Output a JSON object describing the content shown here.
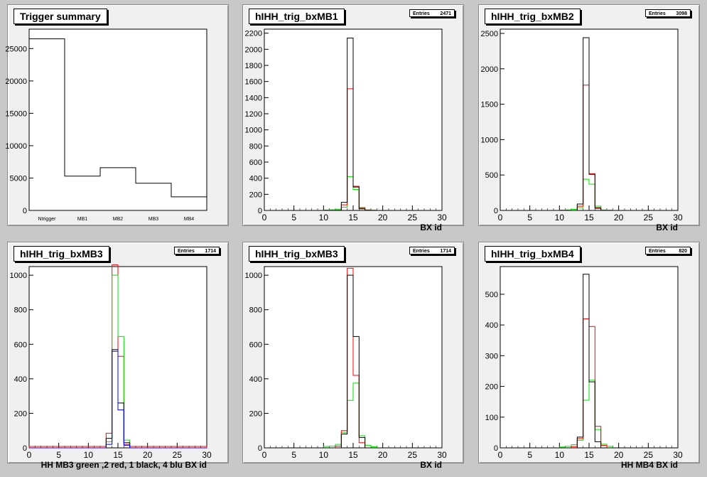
{
  "pads": [
    {
      "title": "Trigger summary",
      "stats": null,
      "xtitle": "",
      "chart_data": {
        "type": "bar",
        "categories": [
          "Ntrigger",
          "MB1",
          "MB2",
          "MB3",
          "MB4"
        ],
        "values": [
          26500,
          5300,
          6600,
          4200,
          2100
        ],
        "ylim": [
          0,
          28000
        ],
        "yticks": [
          0,
          5000,
          10000,
          15000,
          20000,
          25000
        ],
        "yticklabels": [
          "0",
          "5000",
          "10000",
          "15000",
          "20000",
          "25000"
        ]
      }
    },
    {
      "title": "hIHH_trig_bxMB1",
      "stats": {
        "label": "Entries",
        "value": "2471"
      },
      "xtitle": "BX id",
      "chart_data": {
        "type": "line",
        "xlim": [
          0,
          30
        ],
        "ylim": [
          0,
          2250
        ],
        "nbins": 30,
        "xticks": [
          0,
          5,
          10,
          15,
          20,
          25,
          30
        ],
        "yticks": [
          0,
          200,
          400,
          600,
          800,
          1000,
          1200,
          1400,
          1600,
          1800,
          2000,
          2200
        ],
        "series": [
          {
            "color": "#00e000",
            "bins": {
              "10": 5,
              "11": 8,
              "12": 15,
              "13": 40,
              "14": 420,
              "15": 260,
              "16": 25,
              "17": 6,
              "18": 4
            }
          },
          {
            "color": "#ff0000",
            "bins": {
              "12": 4,
              "13": 70,
              "14": 1510,
              "15": 300,
              "16": 35,
              "17": 5
            }
          },
          {
            "color": "#000000",
            "bins": {
              "13": 100,
              "14": 2140,
              "15": 290,
              "16": 20
            }
          }
        ]
      }
    },
    {
      "title": "hIHH_trig_bxMB2",
      "stats": {
        "label": "Entries",
        "value": "3098"
      },
      "xtitle": "BX id",
      "chart_data": {
        "type": "line",
        "xlim": [
          0,
          30
        ],
        "ylim": [
          0,
          2560
        ],
        "nbins": 30,
        "xticks": [
          0,
          5,
          10,
          15,
          20,
          25,
          30
        ],
        "yticks": [
          0,
          500,
          1000,
          1500,
          2000,
          2500
        ],
        "series": [
          {
            "color": "#00e000",
            "bins": {
              "10": 5,
              "11": 8,
              "12": 15,
              "13": 40,
              "14": 440,
              "15": 370,
              "16": 60,
              "17": 6,
              "18": 4
            }
          },
          {
            "color": "#ff0000",
            "bins": {
              "13": 60,
              "14": 1770,
              "15": 520,
              "16": 40
            }
          },
          {
            "color": "#000000",
            "bins": {
              "13": 90,
              "14": 2440,
              "15": 510,
              "16": 30
            }
          }
        ]
      }
    },
    {
      "title": "hIHH_trig_bxMB3",
      "stats": {
        "label": "Entries",
        "value": "1714"
      },
      "xtitle": "HH  MB3 green ,2 red, 1 black, 4 blu      BX id",
      "chart_data": {
        "type": "line",
        "xlim": [
          0,
          30
        ],
        "ylim": [
          0,
          1050
        ],
        "nbins": 30,
        "xticks": [
          0,
          5,
          10,
          15,
          20,
          25,
          30
        ],
        "yticks": [
          0,
          200,
          400,
          600,
          800,
          1000
        ],
        "series": [
          {
            "color": "#ff0000",
            "bins": {
              "0": 8,
              "1": 8,
              "2": 8,
              "3": 8,
              "4": 8,
              "5": 8,
              "6": 8,
              "7": 8,
              "8": 8,
              "9": 8,
              "10": 8,
              "11": 8,
              "12": 8,
              "13": 85,
              "14": 1060,
              "15": 530,
              "16": 20,
              "17": 8,
              "18": 8,
              "19": 8,
              "20": 8,
              "21": 8,
              "22": 8,
              "23": 8,
              "24": 8,
              "25": 8,
              "26": 8,
              "27": 8,
              "28": 8,
              "29": 8
            }
          },
          {
            "color": "#00e000",
            "bins": {
              "13": 35,
              "14": 1000,
              "15": 645,
              "16": 45
            }
          },
          {
            "color": "#000000",
            "bins": {
              "13": 55,
              "14": 560,
              "15": 260,
              "16": 30
            }
          },
          {
            "color": "#0000ff",
            "bins": {
              "13": 20,
              "14": 570,
              "15": 220,
              "16": 15
            }
          }
        ]
      }
    },
    {
      "title": "hIHH_trig_bxMB3",
      "stats": {
        "label": "Entries",
        "value": "1714"
      },
      "xtitle": "BX id",
      "chart_data": {
        "type": "line",
        "xlim": [
          0,
          30
        ],
        "ylim": [
          0,
          1050
        ],
        "nbins": 30,
        "xticks": [
          0,
          5,
          10,
          15,
          20,
          25,
          30
        ],
        "yticks": [
          0,
          200,
          400,
          600,
          800,
          1000
        ],
        "series": [
          {
            "color": "#00e000",
            "bins": {
              "10": 8,
              "11": 10,
              "12": 20,
              "13": 90,
              "14": 275,
              "15": 375,
              "16": 70,
              "17": 15,
              "18": 6
            }
          },
          {
            "color": "#ff0000",
            "bins": {
              "12": 10,
              "13": 100,
              "14": 1040,
              "15": 420,
              "16": 30
            }
          },
          {
            "color": "#000000",
            "bins": {
              "13": 80,
              "14": 1000,
              "15": 645,
              "16": 60
            }
          }
        ]
      }
    },
    {
      "title": "hIHH_trig_bxMB4",
      "stats": {
        "label": "Entries",
        "value": "820"
      },
      "xtitle": "HH MB4 BX id",
      "chart_data": {
        "type": "line",
        "xlim": [
          0,
          30
        ],
        "ylim": [
          0,
          590
        ],
        "nbins": 30,
        "xticks": [
          0,
          5,
          10,
          15,
          20,
          25,
          30
        ],
        "yticks": [
          0,
          100,
          200,
          300,
          400,
          500
        ],
        "series": [
          {
            "color": "#00e000",
            "bins": {
              "10": 3,
              "11": 5,
              "12": 10,
              "13": 25,
              "14": 155,
              "15": 220,
              "16": 60,
              "17": 12,
              "18": 5
            }
          },
          {
            "color": "#ff0000",
            "bins": {
              "12": 4,
              "13": 30,
              "14": 420,
              "15": 395,
              "16": 70,
              "17": 8
            }
          },
          {
            "color": "#000000",
            "bins": {
              "13": 35,
              "14": 565,
              "15": 215,
              "16": 20
            }
          }
        ]
      }
    }
  ]
}
